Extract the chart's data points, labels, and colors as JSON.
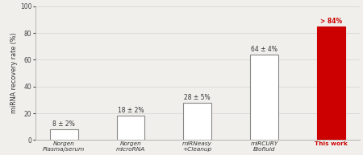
{
  "categories": [
    "Norgen\nPlasma/serum",
    "Norgen\nmicroRNA",
    "miRNeasy\n+Cleanup",
    "miRCURY\nBiofluid",
    "This work"
  ],
  "values": [
    8,
    18,
    28,
    64,
    85
  ],
  "bar_colors": [
    "#ffffff",
    "#ffffff",
    "#ffffff",
    "#ffffff",
    "#cc0000"
  ],
  "edge_colors": [
    "#888888",
    "#888888",
    "#888888",
    "#888888",
    "#cc0000"
  ],
  "bar_labels": [
    "8 ± 2%",
    "18 ± 2%",
    "28 ± 5%",
    "64 ± 4%",
    "> 84%"
  ],
  "label_colors": [
    "#333333",
    "#333333",
    "#333333",
    "#333333",
    "#cc0000"
  ],
  "ylabel": "miRNA recovery rate (%)",
  "ylim": [
    0,
    100
  ],
  "yticks": [
    0,
    20,
    40,
    60,
    80,
    100
  ],
  "background_color": "#f0efeb",
  "grid_color": "#d8d8d8",
  "bar_width": 0.42
}
